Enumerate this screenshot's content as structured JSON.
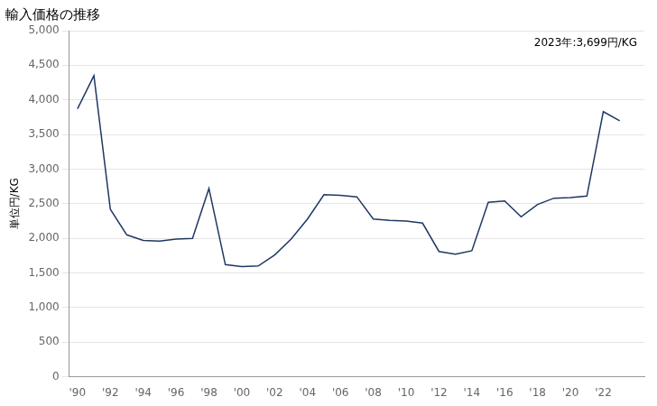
{
  "chart_data": {
    "type": "line",
    "title": "輸入価格の推移",
    "y_label": "単位円/KG",
    "annotation": "2023年:3,699円/KG",
    "color": "#1f3864",
    "x": [
      1990,
      1991,
      1992,
      1993,
      1994,
      1995,
      1996,
      1997,
      1998,
      1999,
      2000,
      2001,
      2002,
      2003,
      2004,
      2005,
      2006,
      2007,
      2008,
      2009,
      2010,
      2011,
      2012,
      2013,
      2014,
      2015,
      2016,
      2017,
      2018,
      2019,
      2020,
      2021,
      2022,
      2023
    ],
    "values": [
      3870,
      4350,
      2420,
      2050,
      1970,
      1960,
      1990,
      2000,
      2720,
      1620,
      1590,
      1600,
      1760,
      1990,
      2280,
      2630,
      2620,
      2600,
      2280,
      2260,
      2250,
      2220,
      1810,
      1770,
      1820,
      2520,
      2540,
      2310,
      2490,
      2580,
      2590,
      2610,
      3830,
      3699
    ],
    "xlim": [
      1989.5,
      2024.5
    ],
    "xticks": [
      {
        "value": 1990,
        "label": "'90"
      },
      {
        "value": 1992,
        "label": "'92"
      },
      {
        "value": 1994,
        "label": "'94"
      },
      {
        "value": 1996,
        "label": "'96"
      },
      {
        "value": 1998,
        "label": "'98"
      },
      {
        "value": 2000,
        "label": "'00"
      },
      {
        "value": 2002,
        "label": "'02"
      },
      {
        "value": 2004,
        "label": "'04"
      },
      {
        "value": 2006,
        "label": "'06"
      },
      {
        "value": 2008,
        "label": "'08"
      },
      {
        "value": 2010,
        "label": "'10"
      },
      {
        "value": 2012,
        "label": "'12"
      },
      {
        "value": 2014,
        "label": "'14"
      },
      {
        "value": 2016,
        "label": "'16"
      },
      {
        "value": 2018,
        "label": "'18"
      },
      {
        "value": 2020,
        "label": "'20"
      },
      {
        "value": 2022,
        "label": "'22"
      }
    ],
    "ylim": [
      0,
      5000
    ],
    "yticks": [
      0,
      500,
      {
        "value": 1000,
        "label": "1,000"
      },
      {
        "value": 1500,
        "label": "1,500"
      },
      {
        "value": 2000,
        "label": "2,000"
      },
      {
        "value": 2500,
        "label": "2,500"
      },
      {
        "value": 3000,
        "label": "3,000"
      },
      {
        "value": 3500,
        "label": "3,500"
      },
      {
        "value": 4000,
        "label": "4,000"
      },
      {
        "value": 4500,
        "label": "4,500"
      },
      {
        "value": 5000,
        "label": "5,000"
      }
    ],
    "grid": true
  }
}
